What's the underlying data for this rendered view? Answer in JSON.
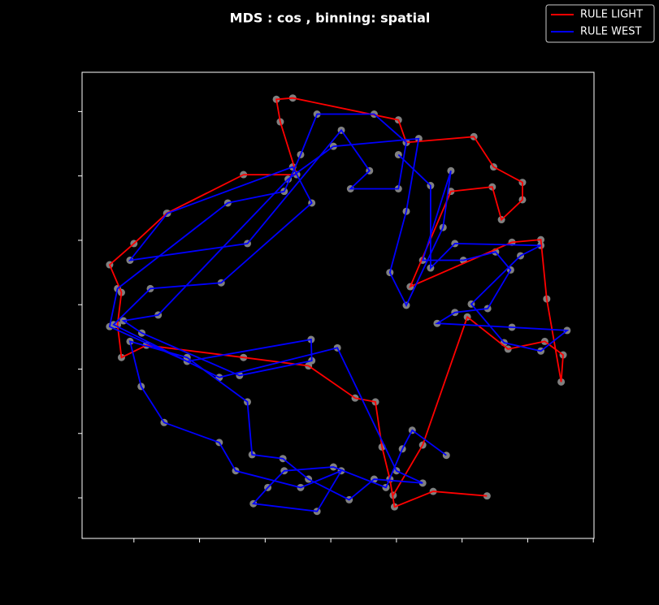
{
  "chart_data": {
    "type": "line",
    "title": "MDS : cos , binning: spatial",
    "xlim": [
      -0.79,
      7.01
    ],
    "ylim": [
      -0.63,
      6.61
    ],
    "xticks": [
      0,
      1,
      2,
      3,
      4,
      5,
      6,
      7
    ],
    "yticks": [
      0,
      1,
      2,
      3,
      4,
      5,
      6
    ],
    "legend": "upper right",
    "point_color": "#808080",
    "series": [
      {
        "name": "RULE LIGHT",
        "color": "#ff0000",
        "x": [
          5.38,
          4.56,
          3.97,
          3.9,
          3.78,
          3.68,
          3.37,
          2.66,
          1.67,
          0.19,
          -0.19,
          -0.25,
          -0.19,
          -0.37,
          0,
          0.5,
          1.67,
          2.48,
          2.23,
          2.17,
          2.42,
          4.03,
          4.15,
          5.18,
          5.48,
          5.92,
          5.92,
          5.6,
          5.46,
          4.83,
          4.21,
          5.76,
          6.2,
          6.29,
          6.51,
          6.54,
          6.26,
          5.7,
          5.08,
          4.4,
          3.95
        ],
        "values": [
          0.03,
          0.1,
          -0.14,
          0.29,
          0.79,
          1.49,
          1.55,
          2.05,
          2.18,
          2.37,
          2.18,
          2.69,
          3.19,
          3.62,
          3.95,
          4.42,
          5.02,
          5.02,
          5.84,
          6.19,
          6.21,
          5.87,
          5.52,
          5.61,
          5.14,
          4.9,
          4.63,
          4.32,
          4.83,
          4.76,
          3.28,
          3.97,
          4.01,
          3.09,
          1.8,
          2.22,
          2.43,
          2.31,
          2.81,
          0.82,
          0.04
        ]
      },
      {
        "name": "RULE WEST",
        "color": "#0000ff",
        "x": [
          4.76,
          4.24,
          4.09,
          3.84,
          3.04,
          2.29,
          2.04,
          1.82,
          2.79,
          3.16,
          2.54,
          1.55,
          1.3,
          0.46,
          0.11,
          -0.06,
          0.81,
          1.73,
          1.8,
          2.27,
          2.66,
          3.28,
          3.66,
          4.4,
          4.0,
          3.1,
          1.3,
          -0.31,
          0.25,
          1.33,
          2.71,
          2.42,
          0.51,
          -0.06,
          1.73,
          3.16,
          3.59,
          3.3,
          4.03,
          4.15,
          3.66,
          2.79,
          2.54,
          2.29,
          1.43,
          -0.25,
          -0.37,
          0.81,
          2.7,
          2.71,
          1.61,
          0.12,
          -0.16,
          0.37,
          2.35,
          3.04,
          4.34,
          4.15,
          3.9,
          4.15,
          4.71,
          4.83,
          4.4,
          5.02,
          5.51,
          5.74,
          5.39,
          4.89,
          4.62,
          5.76,
          6.6,
          6.2,
          5.64,
          5.14,
          5.89,
          6.2,
          4.89,
          4.52,
          4.52,
          4.03
        ],
        "values": [
          0.66,
          1.05,
          0.76,
          0.16,
          0.48,
          0.42,
          0.16,
          -0.09,
          -0.21,
          0.42,
          0.16,
          0.42,
          0.86,
          1.17,
          1.73,
          2.43,
          2.18,
          1.49,
          0.67,
          0.61,
          0.29,
          -0.03,
          0.29,
          0.23,
          0.42,
          2.33,
          1.87,
          2.69,
          3.25,
          3.34,
          4.58,
          5.14,
          4.42,
          3.69,
          3.95,
          5.71,
          5.08,
          4.8,
          4.8,
          5.52,
          5.96,
          5.96,
          5.33,
          4.76,
          4.58,
          3.25,
          2.66,
          2.12,
          2.46,
          2.13,
          1.9,
          2.56,
          2.75,
          2.84,
          4.95,
          5.46,
          5.58,
          4.45,
          3.5,
          2.99,
          4.2,
          5.08,
          3.69,
          3.69,
          3.82,
          3.54,
          2.94,
          2.88,
          2.71,
          2.65,
          2.6,
          2.28,
          2.41,
          3.01,
          3.76,
          3.92,
          3.95,
          3.57,
          4.85,
          5.33
        ]
      }
    ]
  }
}
